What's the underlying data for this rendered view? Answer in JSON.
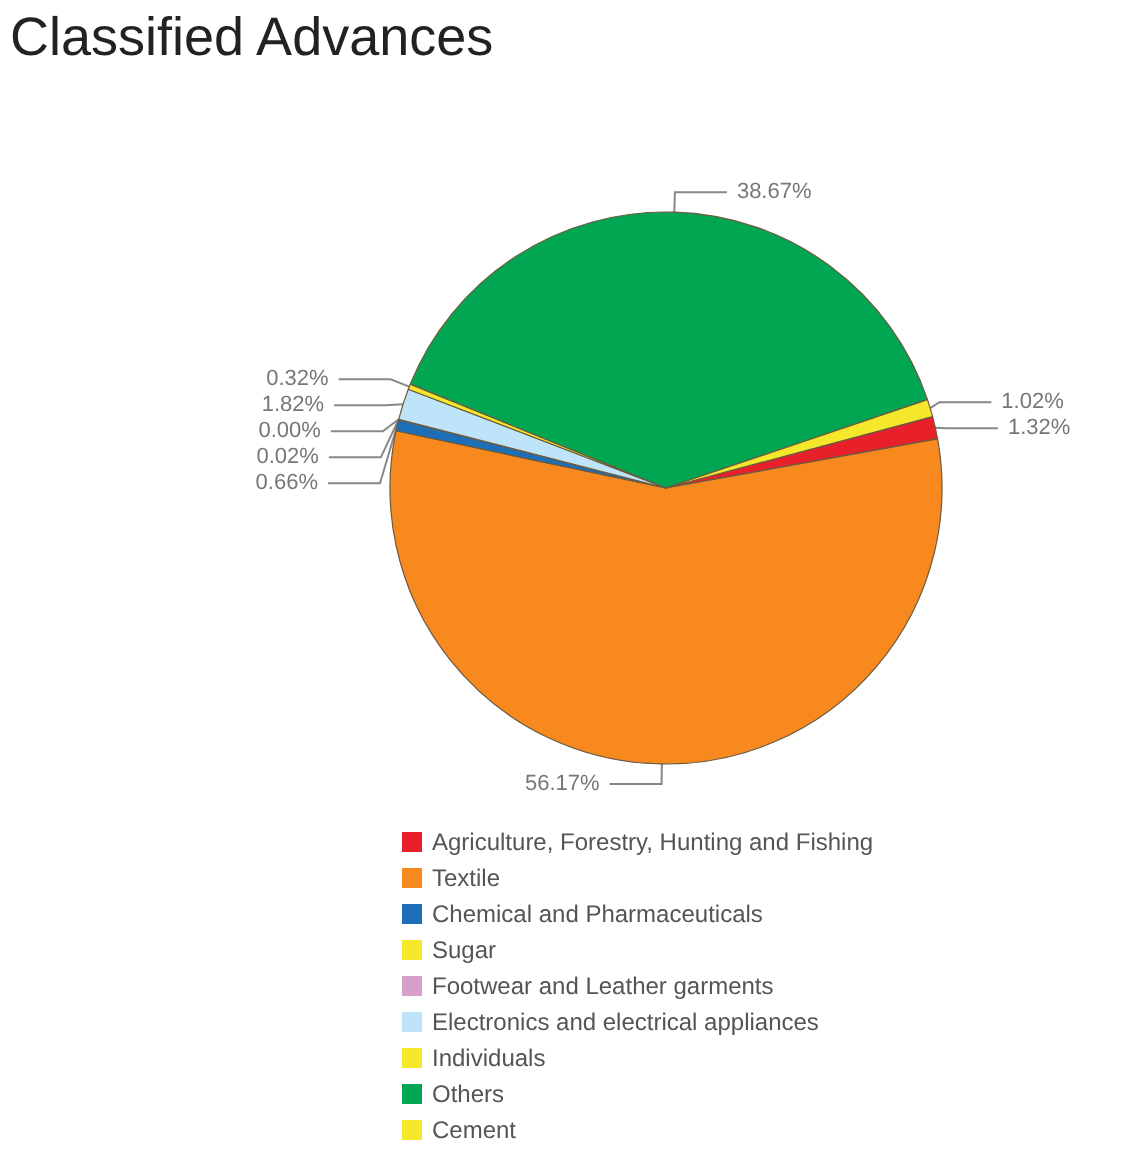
{
  "chart_data": {
    "type": "pie",
    "title": "Classified Advances",
    "categories": [
      "Agriculture, Forestry, Hunting and Fishing",
      "Textile",
      "Chemical and Pharmaceuticals",
      "Sugar",
      "Footwear and Leather garments",
      "Electronics and electrical appliances",
      "Individuals",
      "Others",
      "Cement"
    ],
    "values": [
      1.32,
      56.17,
      0.66,
      0.02,
      0.0,
      1.82,
      0.32,
      38.67,
      1.02
    ],
    "colors": [
      "#e8202a",
      "#f7891f",
      "#1c6fb7",
      "#f5e82a",
      "#d7a0c9",
      "#bde4f8",
      "#f5e82a",
      "#00a651",
      "#f5e82a"
    ],
    "value_labels": [
      "1.32%",
      "56.17%",
      "0.66%",
      "0.02%",
      "0.00%",
      "1.82%",
      "0.32%",
      "38.67%",
      "1.02%"
    ],
    "legend": "bottom"
  }
}
